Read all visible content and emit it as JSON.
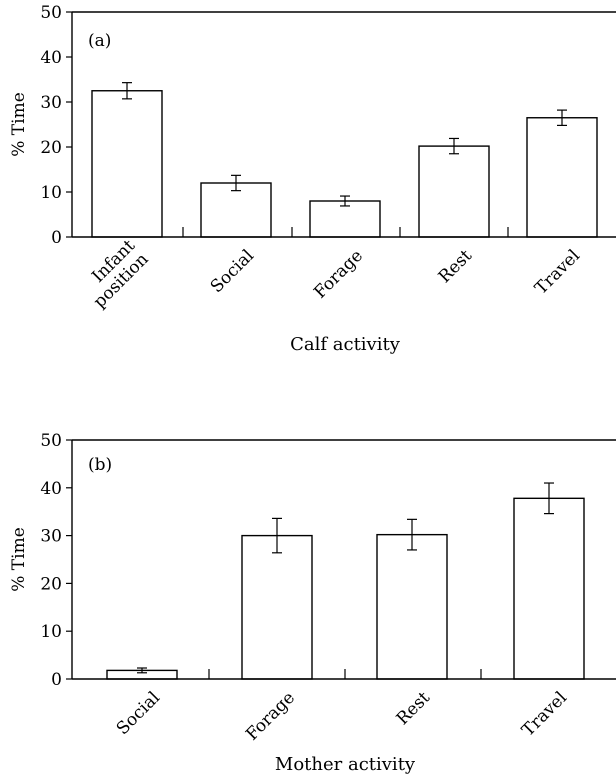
{
  "chart_data": [
    {
      "type": "bar",
      "panel_label": "(a)",
      "categories": [
        "Infant position",
        "Social",
        "Forage",
        "Rest",
        "Travel"
      ],
      "category_lines": [
        [
          "Infant",
          "position"
        ],
        [
          "Social"
        ],
        [
          "Forage"
        ],
        [
          "Rest"
        ],
        [
          "Travel"
        ]
      ],
      "values": [
        32.5,
        12.0,
        8.0,
        20.2,
        26.5
      ],
      "errors": [
        1.8,
        1.7,
        1.1,
        1.7,
        1.7
      ],
      "ylabel": "% Time",
      "xlabel": "Calf activity",
      "ylim": [
        0,
        50
      ],
      "yticks": [
        "0",
        "10",
        "20",
        "30",
        "40",
        "50"
      ],
      "grid": false
    },
    {
      "type": "bar",
      "panel_label": "(b)",
      "categories": [
        "Social",
        "Forage",
        "Rest",
        "Travel"
      ],
      "category_lines": [
        [
          "Social"
        ],
        [
          "Forage"
        ],
        [
          "Rest"
        ],
        [
          "Travel"
        ]
      ],
      "values": [
        1.8,
        30.0,
        30.2,
        37.8
      ],
      "errors": [
        0.5,
        3.6,
        3.2,
        3.2
      ],
      "ylabel": "% Time",
      "xlabel": "Mother activity",
      "ylim": [
        0,
        50
      ],
      "yticks": [
        "0",
        "10",
        "20",
        "30",
        "40",
        "50"
      ],
      "grid": false
    }
  ]
}
